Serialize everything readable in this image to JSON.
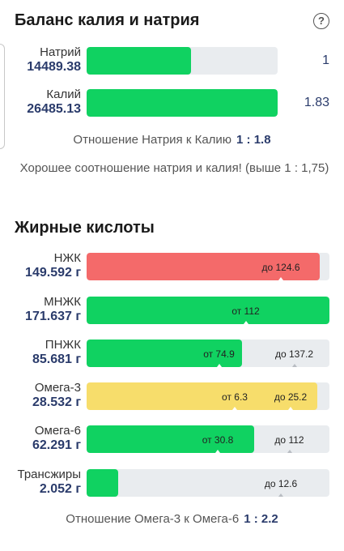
{
  "potassium_sodium": {
    "title": "Баланс калия и натрия",
    "help_icon": "?",
    "sodium": {
      "name": "Натрий",
      "value": "14489.38",
      "ratio": "1",
      "fill": 0.545
    },
    "potassium": {
      "name": "Калий",
      "value": "26485.13",
      "ratio": "1.83",
      "fill": 1.0
    },
    "ratio_label": "Отношение Натрия к Калию",
    "ratio_value": "1 : 1.8",
    "note": "Хорошее соотношение натрия и калия! (выше 1 : 1,75)"
  },
  "fatty_acids": {
    "title": "Жирные кислоты",
    "items": [
      {
        "name": "НЖК",
        "value": "149.592 г",
        "color": "#f46a6a",
        "fill": 0.96,
        "markers": [
          {
            "text": "до 124.6",
            "pos": 0.8
          }
        ]
      },
      {
        "name": "МНЖК",
        "value": "171.637 г",
        "color": "#10d261",
        "fill": 1.0,
        "markers": [
          {
            "text": "от 112",
            "pos": 0.655
          }
        ]
      },
      {
        "name": "ПНЖК",
        "value": "85.681 г",
        "color": "#10d261",
        "fill": 0.64,
        "markers": [
          {
            "text": "от 74.9",
            "pos": 0.545
          },
          {
            "text": "до 137.2",
            "pos": 0.855
          }
        ]
      },
      {
        "name": "Омега-3",
        "value": "28.532 г",
        "color": "#f7dd6b",
        "fill": 0.95,
        "markers": [
          {
            "text": "от 6.3",
            "pos": 0.61
          },
          {
            "text": "до 25.2",
            "pos": 0.84
          }
        ]
      },
      {
        "name": "Омега-6",
        "value": "62.291 г",
        "color": "#10d261",
        "fill": 0.69,
        "markers": [
          {
            "text": "от 30.8",
            "pos": 0.54
          },
          {
            "text": "до 112",
            "pos": 0.835
          }
        ]
      },
      {
        "name": "Трансжиры",
        "value": "2.052 г",
        "color": "#10d261",
        "fill": 0.13,
        "markers": [
          {
            "text": "до 12.6",
            "pos": 0.8
          }
        ]
      }
    ],
    "ratio_label": "Отношение Омега-3 к Омега-6",
    "ratio_value": "1 : 2.2"
  }
}
